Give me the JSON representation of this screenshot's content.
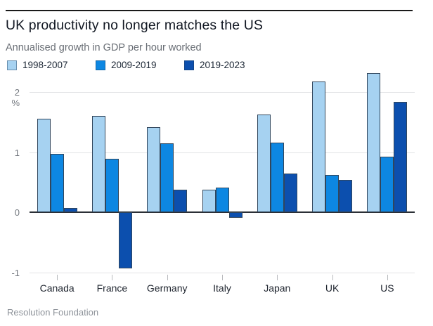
{
  "header": {
    "title": "UK productivity no longer matches the US",
    "subtitle": "Annualised growth in GDP per hour worked"
  },
  "footer": {
    "source": "Resolution Foundation"
  },
  "colors": {
    "series_light_blue": "#a6d2f1",
    "series_medium_blue": "#0d87e2",
    "series_dark_blue": "#0c4fae",
    "bar_outline": "#31465c",
    "zero_axis": "#2b2f36",
    "gridline": "#e3e4e6"
  },
  "chart_data": {
    "type": "bar",
    "title": "UK productivity no longer matches the US",
    "subtitle": "Annualised growth in GDP per hour worked",
    "source": "Resolution Foundation",
    "categories": [
      "Canada",
      "France",
      "Germany",
      "Italy",
      "Japan",
      "UK",
      "US"
    ],
    "series": [
      {
        "name": "1998-2007",
        "color": "#a6d2f1",
        "values": [
          1.55,
          1.6,
          1.41,
          0.37,
          1.63,
          2.17,
          2.32
        ]
      },
      {
        "name": "2009-2019",
        "color": "#0d87e2",
        "values": [
          0.97,
          0.89,
          1.15,
          0.41,
          1.16,
          0.62,
          0.92
        ]
      },
      {
        "name": "2019-2023",
        "color": "#0c4fae",
        "values": [
          0.07,
          -0.93,
          0.37,
          -0.09,
          0.64,
          0.54,
          1.84
        ]
      }
    ],
    "xlabel": "",
    "ylabel": "%",
    "yticks": [
      -1,
      0,
      1,
      2
    ],
    "ylim": [
      -1.15,
      2.45
    ],
    "grid": true,
    "legend_position": "top"
  }
}
